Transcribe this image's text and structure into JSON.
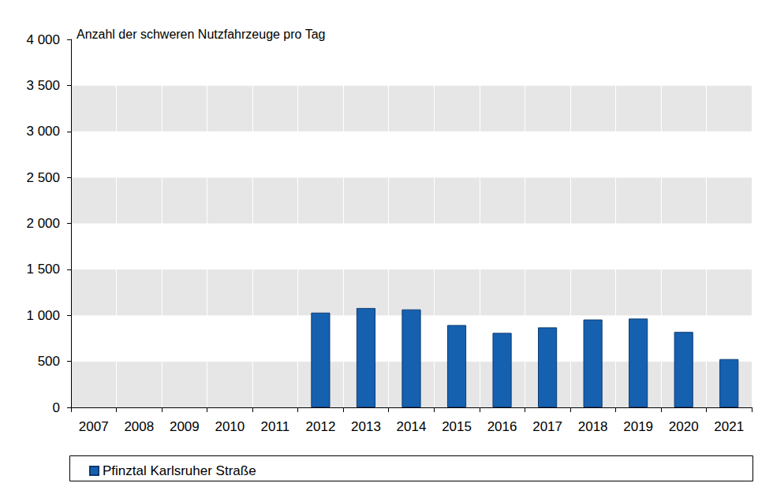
{
  "chart_data": {
    "type": "bar",
    "title": "Anzahl der schweren Nutzfahrzeuge pro Tag",
    "categories": [
      "2007",
      "2008",
      "2009",
      "2010",
      "2011",
      "2012",
      "2013",
      "2014",
      "2015",
      "2016",
      "2017",
      "2018",
      "2019",
      "2020",
      "2021"
    ],
    "series": [
      {
        "name": "Pfinztal Karlsruher Straße",
        "color": "#1660b0",
        "values": [
          null,
          null,
          null,
          null,
          null,
          1030,
          1080,
          1065,
          895,
          810,
          870,
          955,
          965,
          820,
          525
        ]
      }
    ],
    "ylim": [
      0,
      4000
    ],
    "yticks": [
      0,
      500,
      {
        "value": 1000,
        "label": "1 000"
      },
      {
        "value": 1500,
        "label": "1 500"
      },
      {
        "value": 2000,
        "label": "2 000"
      },
      {
        "value": 2500,
        "label": "2 500"
      },
      {
        "value": 3000,
        "label": "3 000"
      },
      {
        "value": 3500,
        "label": "3 500"
      },
      {
        "value": 4000,
        "label": "4 000"
      }
    ],
    "grid": true,
    "legend": "bottom"
  }
}
